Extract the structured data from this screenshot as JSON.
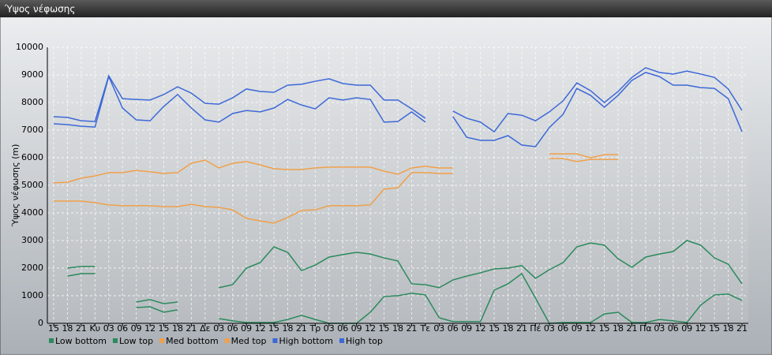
{
  "chart_data": {
    "type": "line",
    "title": "Ύψος νέφωσης",
    "y_label": "Ύψος νέφωσης (m)",
    "categories": [
      "15",
      "18",
      "21",
      "Κυ",
      "03",
      "06",
      "09",
      "12",
      "15",
      "18",
      "21",
      "Δε",
      "03",
      "06",
      "09",
      "12",
      "15",
      "18",
      "21",
      "Τρ",
      "03",
      "06",
      "09",
      "12",
      "15",
      "18",
      "21",
      "Τε",
      "03",
      "06",
      "09",
      "12",
      "15",
      "18",
      "21",
      "Πέ",
      "03",
      "06",
      "09",
      "12",
      "15",
      "18",
      "21",
      "Πα",
      "03",
      "06",
      "09",
      "12",
      "15",
      "18",
      "21"
    ],
    "ylim": [
      0,
      10000
    ],
    "yticks": [
      0,
      1000,
      2000,
      3000,
      4000,
      5000,
      6000,
      7000,
      8000,
      9000,
      10000
    ],
    "grid": true,
    "series": [
      {
        "name": "Low bottom",
        "color": "#2a8a5c",
        "values": [
          null,
          1710,
          1800,
          1800,
          null,
          null,
          570,
          600,
          400,
          490,
          null,
          null,
          170,
          90,
          30,
          30,
          30,
          140,
          290,
          140,
          0,
          0,
          0,
          400,
          970,
          1000,
          1090,
          1030,
          200,
          60,
          60,
          60,
          1200,
          1430,
          1800,
          910,
          0,
          30,
          30,
          30,
          340,
          400,
          30,
          30,
          140,
          90,
          30,
          660,
          1030,
          1060,
          830
        ]
      },
      {
        "name": "Low top",
        "color": "#2a8a5c",
        "values": [
          null,
          2000,
          2060,
          2060,
          null,
          null,
          770,
          860,
          710,
          770,
          null,
          null,
          1290,
          1400,
          2000,
          2200,
          2770,
          2570,
          1910,
          2110,
          2400,
          2490,
          2570,
          2510,
          2370,
          2260,
          1430,
          1400,
          1290,
          1570,
          1710,
          1830,
          1970,
          2000,
          2090,
          1630,
          1940,
          2200,
          2770,
          2910,
          2830,
          2340,
          2030,
          2400,
          2510,
          2600,
          3000,
          2830,
          2370,
          2140,
          1430
        ]
      },
      {
        "name": "Med bottom",
        "color": "#f0a04a",
        "values": [
          4430,
          4430,
          4430,
          4370,
          4290,
          4260,
          4260,
          4260,
          4230,
          4230,
          4310,
          4230,
          4200,
          4110,
          3800,
          3710,
          3630,
          3830,
          4090,
          4110,
          4260,
          4260,
          4260,
          4290,
          4860,
          4910,
          5460,
          5460,
          5430,
          5430,
          null,
          null,
          null,
          null,
          null,
          null,
          5970,
          5970,
          5860,
          5940,
          5940,
          5940,
          null,
          null,
          null,
          null,
          null,
          null,
          null,
          null,
          null
        ]
      },
      {
        "name": "Med top",
        "color": "#f0a04a",
        "values": [
          5090,
          5110,
          5260,
          5340,
          5460,
          5460,
          5540,
          5490,
          5430,
          5460,
          5800,
          5910,
          5630,
          5800,
          5860,
          5740,
          5600,
          5570,
          5570,
          5630,
          5660,
          5660,
          5660,
          5660,
          5510,
          5400,
          5630,
          5690,
          5630,
          5630,
          null,
          null,
          null,
          null,
          null,
          null,
          6140,
          6140,
          6140,
          6000,
          6110,
          6110,
          null,
          null,
          null,
          null,
          null,
          null,
          null,
          null,
          null
        ]
      },
      {
        "name": "High bottom",
        "color": "#3c68d8",
        "values": [
          7230,
          7200,
          7140,
          7110,
          8940,
          7800,
          7370,
          7340,
          7860,
          8290,
          7800,
          7370,
          7290,
          7600,
          7710,
          7660,
          7800,
          8110,
          7910,
          7770,
          8170,
          8090,
          8170,
          8110,
          7290,
          7310,
          7660,
          7290,
          null,
          7490,
          6740,
          6630,
          6630,
          6800,
          6460,
          6400,
          7090,
          7570,
          8510,
          8260,
          7830,
          8260,
          8800,
          9090,
          8940,
          8630,
          8630,
          8540,
          8510,
          8140,
          6940
        ]
      },
      {
        "name": "High top",
        "color": "#3c68d8",
        "values": [
          7486,
          7460,
          7340,
          7310,
          8970,
          8140,
          8110,
          8090,
          8290,
          8570,
          8340,
          7970,
          7940,
          8170,
          8490,
          8400,
          8370,
          8630,
          8660,
          8770,
          8860,
          8690,
          8630,
          8630,
          8090,
          8090,
          7770,
          7430,
          null,
          7690,
          7430,
          7290,
          6940,
          7600,
          7540,
          7340,
          7660,
          8060,
          8710,
          8430,
          8000,
          8400,
          8910,
          9260,
          9090,
          9030,
          9140,
          9030,
          8910,
          8490,
          7710
        ]
      }
    ]
  }
}
